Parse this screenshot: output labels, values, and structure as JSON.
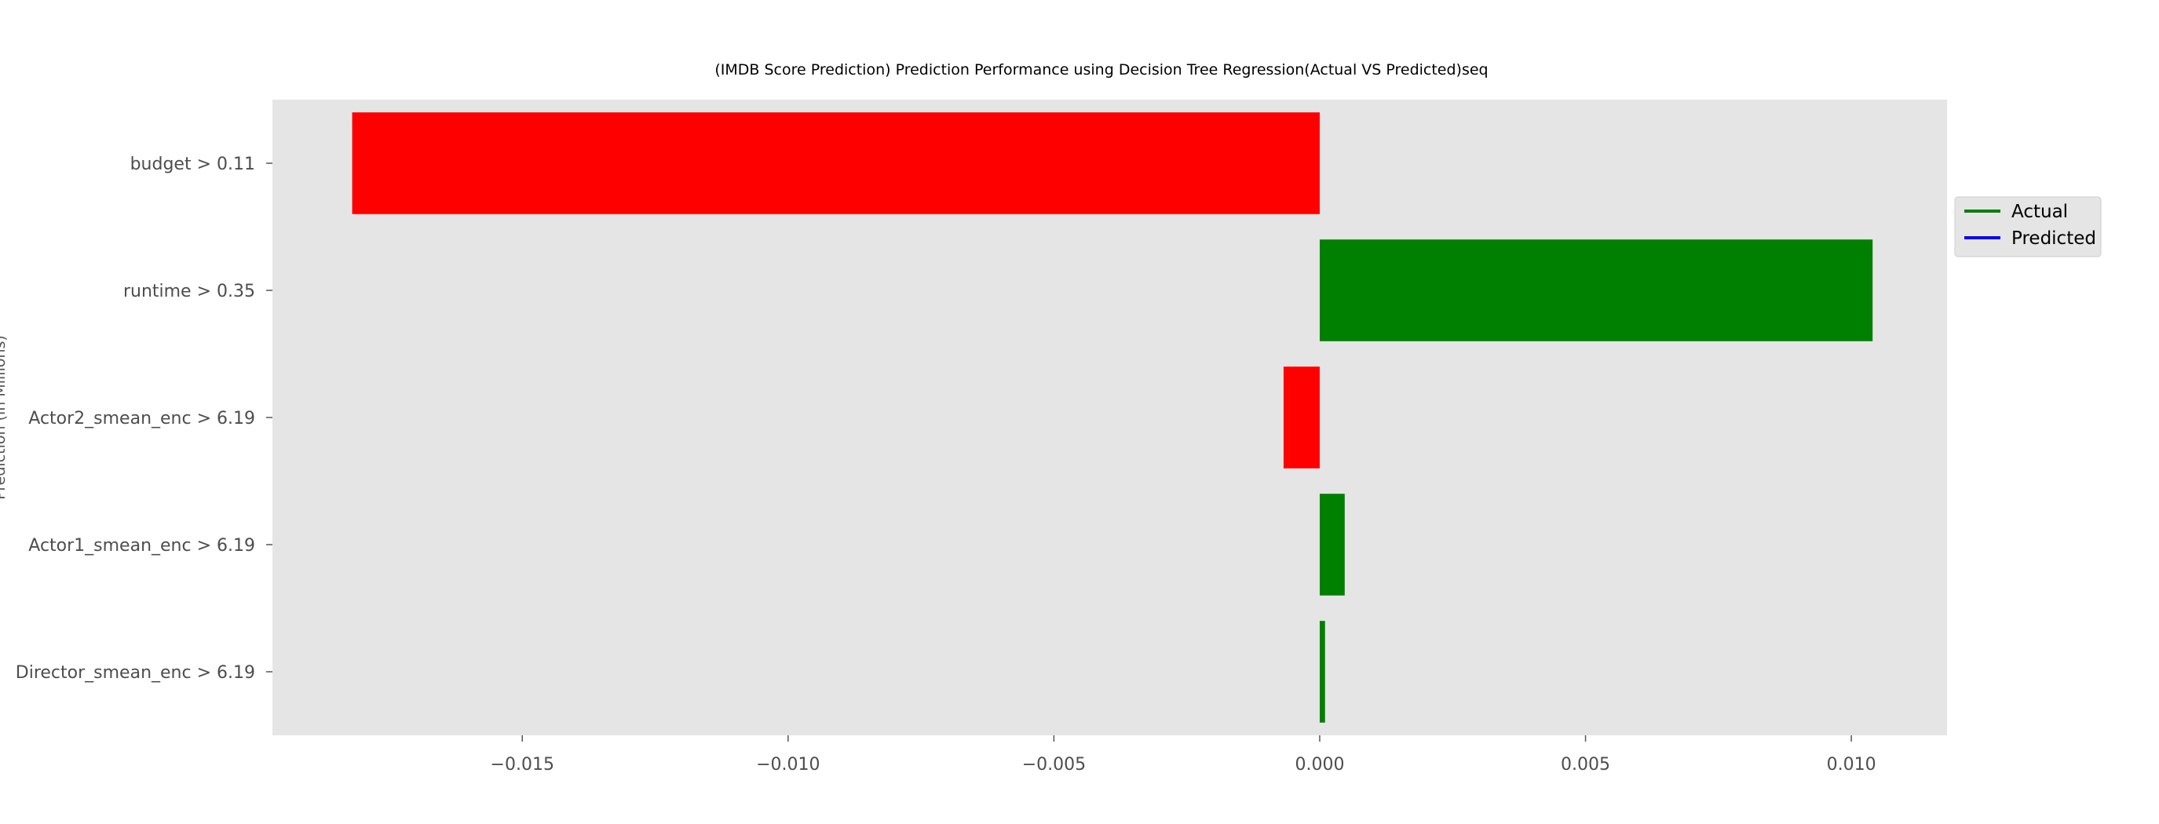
{
  "chart_data": {
    "type": "bar",
    "orientation": "horizontal",
    "title": "(IMDB Score Prediction) Prediction Performance using Decision Tree Regression(Actual VS Predicted)seq",
    "ylabel": "Prediction (in Millions)",
    "xlabel": "",
    "categories": [
      "budget > 0.11",
      "runtime > 0.35",
      "Actor2_smean_enc > 6.19",
      "Actor1_smean_enc > 6.19",
      "Director_smean_enc > 6.19"
    ],
    "values": [
      -0.0182,
      0.0104,
      -0.00068,
      0.00047,
      0.0001
    ],
    "xlim": [
      -0.0197,
      0.0118
    ],
    "xticks": [
      -0.015,
      -0.01,
      -0.005,
      0.0,
      0.005,
      0.01
    ],
    "xtick_labels": [
      "−0.015",
      "−0.010",
      "−0.005",
      "0.000",
      "0.005",
      "0.010"
    ],
    "grid": false,
    "colors": {
      "positive": "#008000",
      "negative": "#ff0000",
      "background": "#e5e5e5"
    },
    "legend": {
      "placement": "right-outside-top",
      "entries": [
        {
          "label": "Actual",
          "color": "#008000"
        },
        {
          "label": "Predicted",
          "color": "#0000ff"
        }
      ]
    }
  }
}
